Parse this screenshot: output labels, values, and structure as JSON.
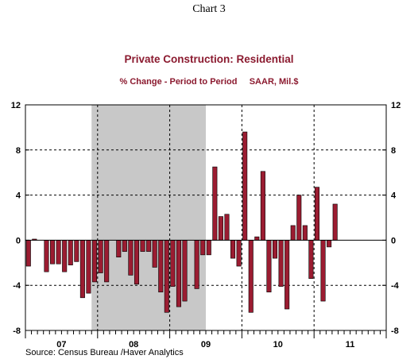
{
  "header": {
    "chart_number": "Chart 3"
  },
  "footer": {
    "source": "Source:  Census Bureau /Haver Analytics"
  },
  "chart_data": {
    "type": "bar",
    "title": "Private Construction: Residential",
    "subtitle": "% Change - Period to Period     SAAR, Mil.$",
    "ylim": [
      -8,
      12
    ],
    "yticks": [
      "12",
      "8",
      "4",
      "0",
      "-4",
      "-8"
    ],
    "ytick_values": [
      12,
      8,
      4,
      0,
      -4,
      -8
    ],
    "x_year_labels": [
      "07",
      "08",
      "09",
      "10",
      "11"
    ],
    "x_start": "2007-01",
    "x_end": "2011-12",
    "frequency": "monthly",
    "recession_shading": {
      "start": "2007-12",
      "end": "2009-06",
      "color": "#c8c8c8"
    },
    "bar_color": "#9b1c31",
    "grid": "dashed vertical lines at year boundaries; dashed horizontal lines at 8, 4, -4",
    "series": [
      {
        "values": [
          -2.3,
          0.1,
          0,
          -2.8,
          -2.1,
          -2.1,
          -2.8,
          -2.2,
          -1.9,
          -5.1,
          -4.7,
          -3.7,
          -2.9,
          -3.7,
          0,
          -1.5,
          -1.0,
          -3.1,
          -3.9,
          -1.0,
          -1.0,
          -2.4,
          -4.6,
          -6.4,
          -4.1,
          -5.9,
          -5.4,
          0,
          -4.3,
          -1.3,
          -1.3,
          6.5,
          2.1,
          2.3,
          -1.6,
          -2.3,
          9.6,
          -6.4,
          0.3,
          6.1,
          -4.6,
          -1.6,
          -4.1,
          -6.1,
          1.3,
          4.0,
          1.3,
          -3.4,
          4.7,
          -5.4,
          -0.6,
          3.2
        ]
      }
    ]
  }
}
